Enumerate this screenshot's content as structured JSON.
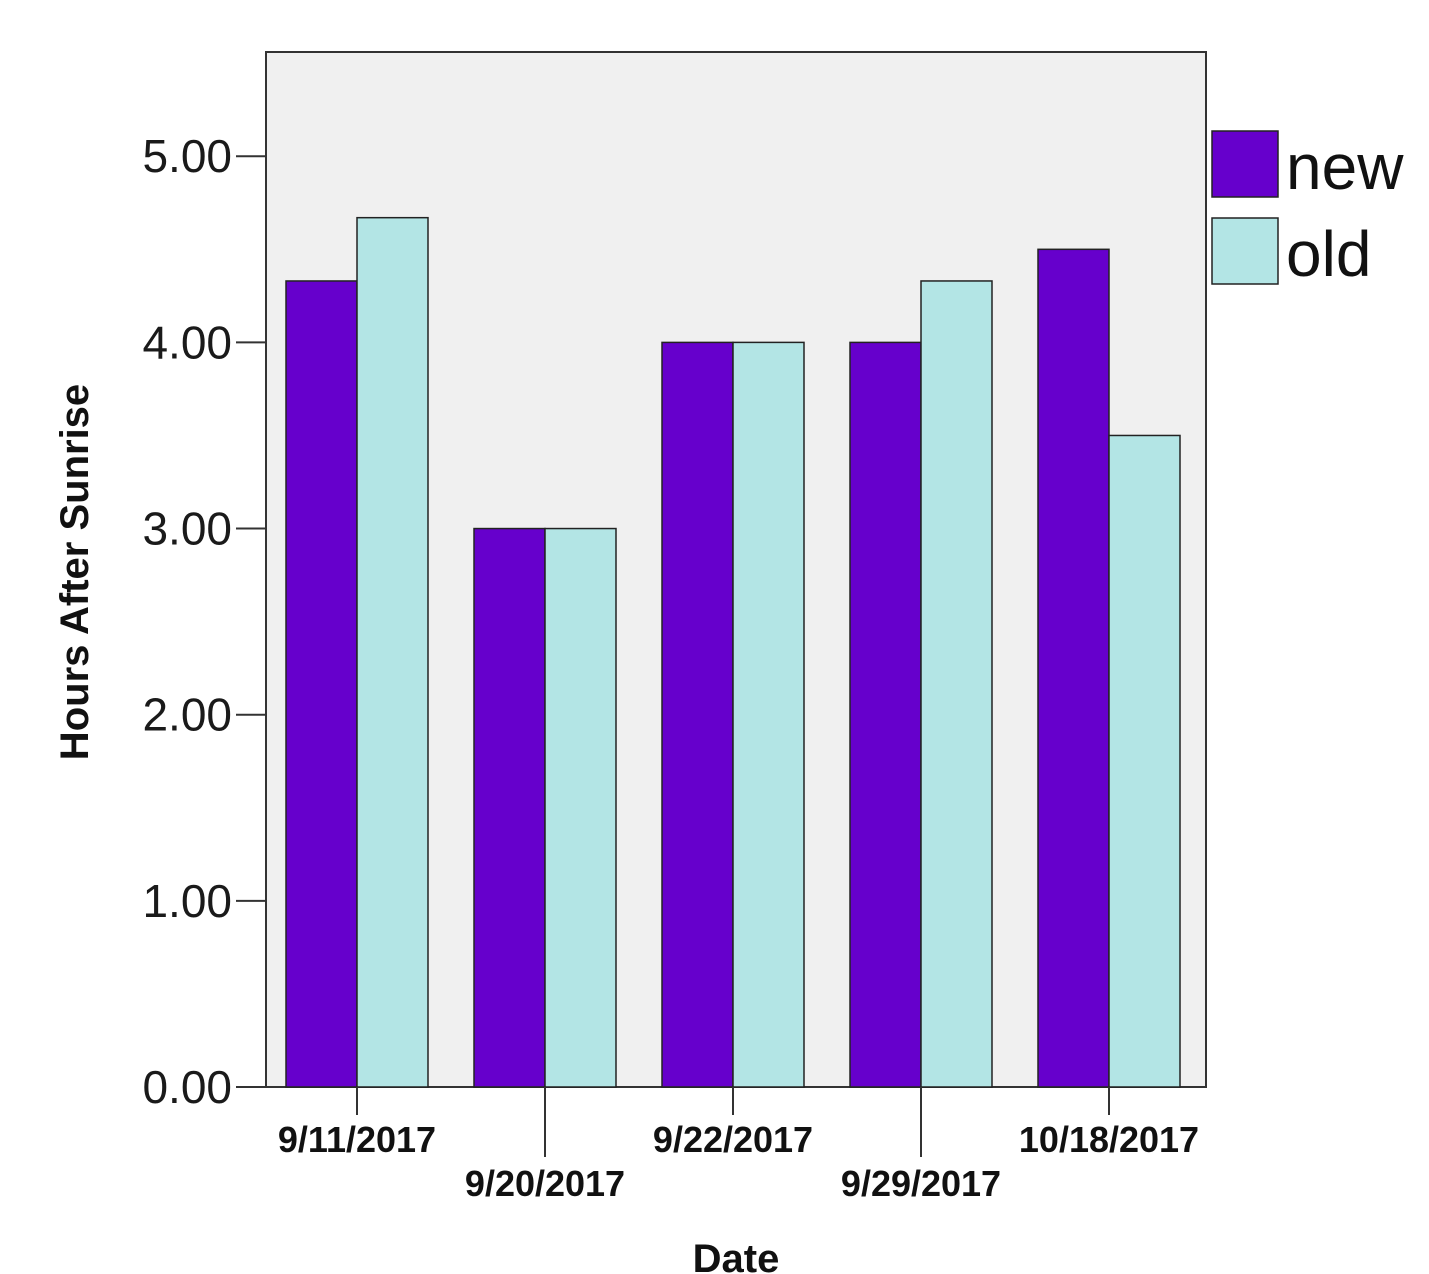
{
  "chart_data": {
    "type": "bar",
    "xlabel": "Date",
    "ylabel": "Hours After Sunrise",
    "categories": [
      "9/11/2017",
      "9/20/2017",
      "9/22/2017",
      "9/29/2017",
      "10/18/2017"
    ],
    "series": [
      {
        "name": "new",
        "color": "#6600cc",
        "values": [
          4.33,
          3.0,
          4.0,
          4.0,
          4.5
        ]
      },
      {
        "name": "old",
        "color": "#b3e5e5",
        "values": [
          4.67,
          3.0,
          4.0,
          4.33,
          3.5
        ]
      }
    ],
    "ylim": [
      0,
      5.56
    ],
    "yticks": [
      "0.00",
      "1.00",
      "2.00",
      "3.00",
      "4.00",
      "5.00"
    ],
    "plot_background": "#f0f0f0",
    "grid": false,
    "legend_position": "right-top"
  }
}
